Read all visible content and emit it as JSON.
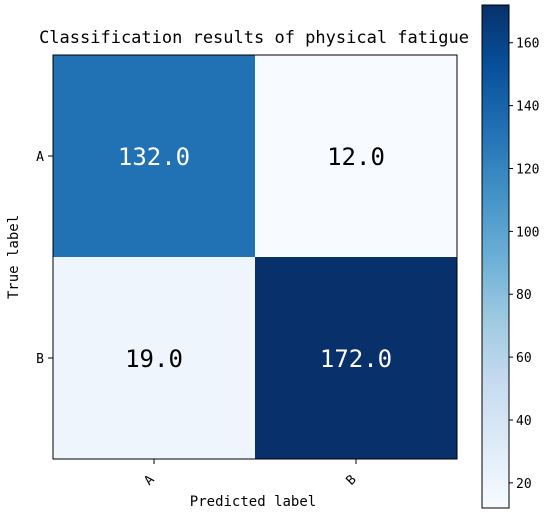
{
  "chart_data": {
    "type": "heatmap",
    "title": "Classification results of physical fatigue",
    "xlabel": "Predicted label",
    "ylabel": "True label",
    "x_categories": [
      "A",
      "B"
    ],
    "y_categories": [
      "A",
      "B"
    ],
    "values": [
      [
        132,
        12
      ],
      [
        19,
        172
      ]
    ],
    "cell_labels": [
      [
        "132.0",
        "12.0"
      ],
      [
        "19.0",
        "172.0"
      ]
    ],
    "value_range": [
      12,
      172
    ],
    "colormap": "Blues",
    "colorbar": {
      "ticks": [
        20,
        40,
        60,
        80,
        100,
        120,
        140,
        160
      ],
      "labels": [
        "20",
        "40",
        "60",
        "80",
        "100",
        "120",
        "140",
        "160"
      ],
      "placement": "right"
    },
    "colors": {
      "low": "#f7fbff",
      "high": "#08306b"
    }
  }
}
